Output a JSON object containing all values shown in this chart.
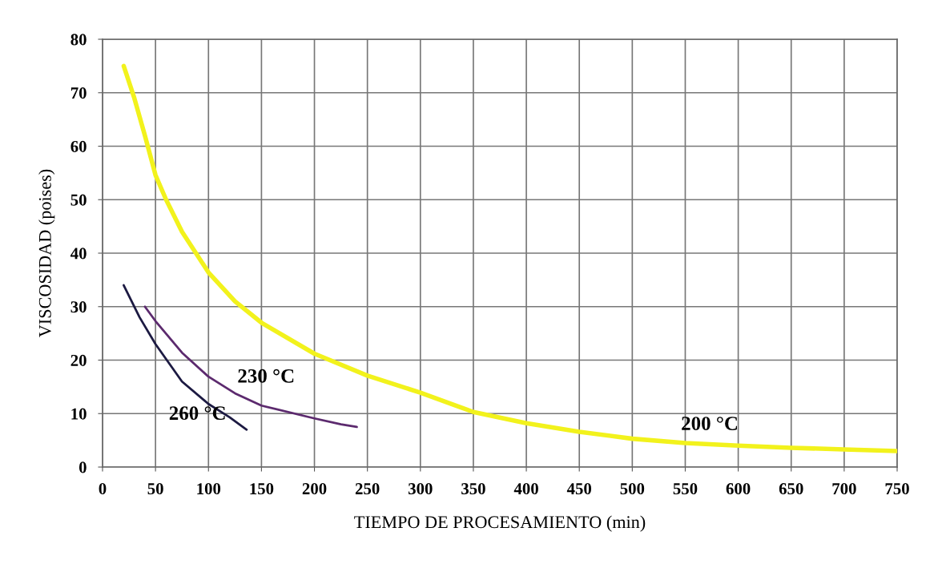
{
  "chart_data": {
    "type": "line",
    "xlabel": "TIEMPO DE PROCESAMIENTO (min)",
    "ylabel": "VISCOSIDAD (poises)",
    "xlim": [
      0,
      750
    ],
    "xticks": [
      0,
      50,
      100,
      150,
      200,
      250,
      300,
      350,
      400,
      450,
      500,
      550,
      600,
      650,
      700,
      750
    ],
    "ylim": [
      0,
      80
    ],
    "yticks": [
      0,
      10,
      20,
      30,
      40,
      50,
      60,
      70,
      80
    ],
    "grid": true,
    "marker": "none",
    "line_style": "solid",
    "series": [
      {
        "name": "200 °C",
        "color": "#f2f21c",
        "x": [
          20,
          30,
          40,
          50,
          60,
          75,
          100,
          125,
          150,
          200,
          250,
          300,
          350,
          400,
          450,
          500,
          550,
          600,
          650,
          700,
          750
        ],
        "values": [
          75,
          69,
          62,
          54.6,
          50,
          44,
          36.4,
          31,
          27,
          21.2,
          17.1,
          13.9,
          10.3,
          8.2,
          6.6,
          5.3,
          4.5,
          4.0,
          3.6,
          3.3,
          3.0
        ]
      },
      {
        "name": "230 °C",
        "color": "#5c2a6e",
        "x": [
          40,
          50,
          75,
          100,
          125,
          150,
          200,
          225,
          240
        ],
        "values": [
          30,
          27.3,
          21.4,
          16.9,
          13.8,
          11.5,
          9.1,
          8.0,
          7.5
        ]
      },
      {
        "name": "260 °C",
        "color": "#1c1a42",
        "x": [
          20,
          35,
          50,
          75,
          100,
          120,
          136
        ],
        "values": [
          34,
          28,
          23,
          16,
          11.8,
          9.3,
          7
        ]
      }
    ]
  }
}
